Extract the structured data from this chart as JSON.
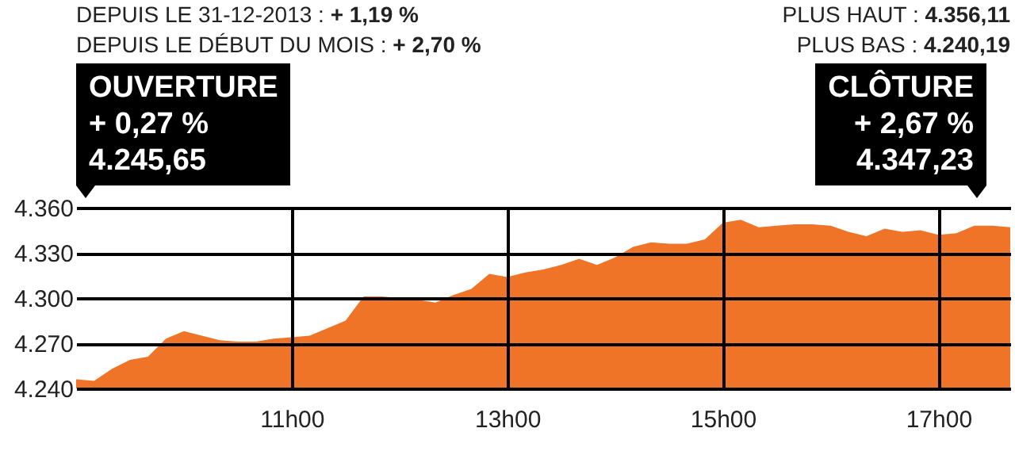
{
  "chart_data": {
    "type": "area",
    "annotations": [
      "DEPUIS LE 31-12-2013 : + 1,19 %",
      "DEPUIS LE DÉBUT DU MOIS : + 2,70 %",
      "PLUS HAUT : 4.356,11",
      "PLUS BAS : 4.240,19",
      "OUVERTURE\n+ 0,27 %\n4.245,65",
      "CLÔTURE\n+ 2,67 %\n4.347,23"
    ],
    "categories": [
      null,
      null,
      null,
      null,
      null,
      null,
      null,
      null,
      null,
      null,
      null,
      null,
      "11h00",
      null,
      null,
      null,
      null,
      null,
      null,
      null,
      null,
      null,
      null,
      null,
      "13h00",
      null,
      null,
      null,
      null,
      null,
      null,
      null,
      null,
      null,
      null,
      null,
      "15h00",
      null,
      null,
      null,
      null,
      null,
      null,
      null,
      null,
      null,
      null,
      null,
      "17h00",
      null,
      null,
      null,
      null
    ],
    "series": [
      {
        "color": "#f07427",
        "values": [
          4246,
          4245,
          4253,
          4259,
          4261,
          4273,
          4278,
          4275,
          4272,
          4271,
          4271,
          4273,
          4274,
          4275,
          4280,
          4285,
          4301,
          4301,
          4300,
          4299,
          4297,
          4302,
          4306,
          4316,
          4314,
          4317,
          4319,
          4322,
          4326,
          4322,
          4327,
          4334,
          4337,
          4336,
          4336,
          4339,
          4350,
          4352,
          4347,
          4348,
          4349,
          4349,
          4348,
          4344,
          4341,
          4346,
          4344,
          4345,
          4342,
          4343,
          4348,
          4348,
          4347
        ]
      }
    ],
    "ylim": [
      4240,
      4360
    ],
    "yticks": [
      {
        "value": 4240,
        "label": "4.240"
      },
      {
        "value": 4270,
        "label": "4.270"
      },
      {
        "value": 4300,
        "label": "4.300"
      },
      {
        "value": 4330,
        "label": "4.330"
      },
      {
        "value": 4360,
        "label": "4.360"
      }
    ],
    "grid": true
  }
}
